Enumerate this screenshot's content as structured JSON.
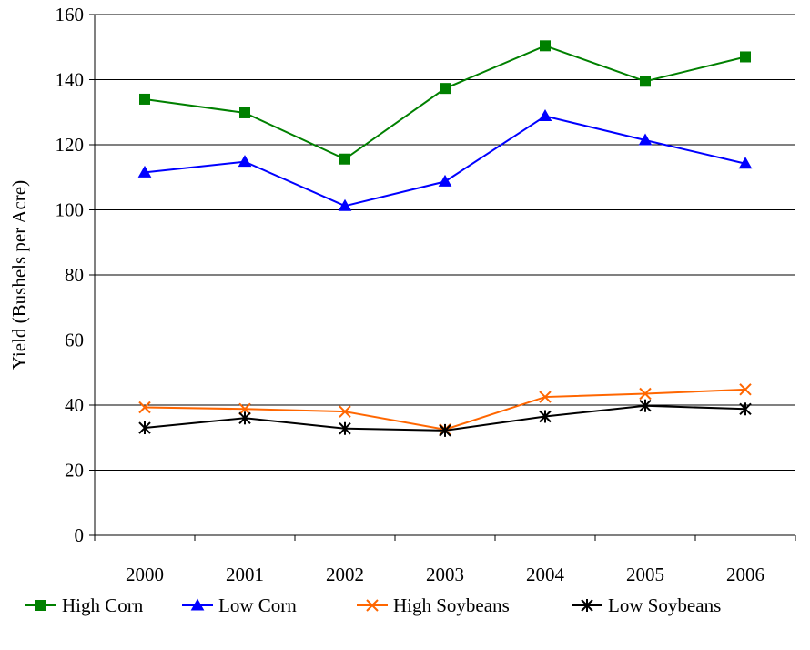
{
  "chart_data": {
    "type": "line",
    "title": "",
    "xlabel": "",
    "ylabel": "Yield (Bushels per Acre)",
    "categories": [
      "2000",
      "2001",
      "2002",
      "2003",
      "2004",
      "2005",
      "2006"
    ],
    "ylim": [
      0,
      160
    ],
    "yticks": [
      0,
      20,
      40,
      60,
      80,
      100,
      120,
      140,
      160
    ],
    "grid": "horizontal",
    "legend_position": "bottom",
    "series": [
      {
        "name": "High Corn",
        "color": "#008000",
        "marker": "square",
        "values": [
          134,
          129.8,
          115.6,
          137.3,
          150.4,
          139.5,
          147
        ]
      },
      {
        "name": "Low Corn",
        "color": "#0000ff",
        "marker": "triangle",
        "values": [
          111.5,
          114.8,
          101.2,
          108.7,
          128.8,
          121.4,
          114.2
        ]
      },
      {
        "name": "High Soybeans",
        "color": "#ff6600",
        "marker": "x",
        "values": [
          39.3,
          38.8,
          38,
          32.5,
          42.5,
          43.5,
          44.8
        ]
      },
      {
        "name": "Low Soybeans",
        "color": "#000000",
        "marker": "asterisk",
        "values": [
          33,
          36,
          32.8,
          32.2,
          36.5,
          39.8,
          38.8
        ]
      }
    ]
  }
}
